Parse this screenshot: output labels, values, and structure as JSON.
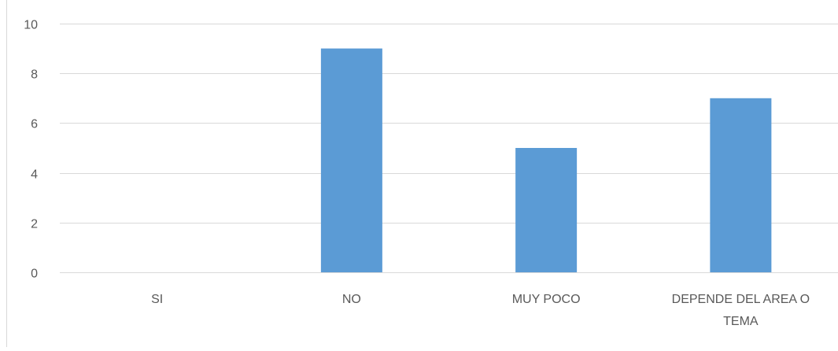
{
  "chart_data": {
    "type": "bar",
    "categories": [
      "SI",
      "NO",
      "MUY POCO",
      "DEPENDE DEL AREA O TEMA"
    ],
    "category_label_lines": [
      [
        "SI"
      ],
      [
        "NO"
      ],
      [
        "MUY POCO"
      ],
      [
        "DEPENDE DEL AREA O",
        "TEMA"
      ]
    ],
    "values": [
      0,
      9,
      5,
      7
    ],
    "ylim": [
      0,
      10
    ],
    "yticks": [
      "0",
      "2",
      "4",
      "6",
      "8",
      "10"
    ],
    "title": "",
    "xlabel": "",
    "ylabel": "",
    "grid": true,
    "legend": "none",
    "colors": {
      "bar": "#5b9bd5",
      "grid": "#d9d9d9",
      "axis": "#d9d9d9",
      "label": "#595959"
    }
  }
}
